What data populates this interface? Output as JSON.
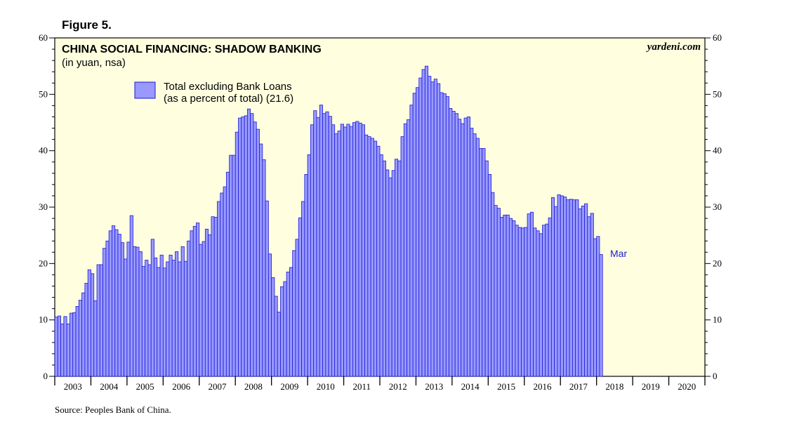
{
  "figure_label": "Figure 5.",
  "source": "Source: Peoples Bank of China.",
  "brand": "yardeni.com",
  "colors": {
    "plot_bg": "#ffffe0",
    "bar_fill": "#9999ff",
    "bar_stroke": "#1a1ad6",
    "annotation": "#1a1ad6"
  },
  "chart_data": {
    "type": "bar",
    "title": "CHINA SOCIAL FINANCING: SHADOW BANKING",
    "subtitle": "(in yuan, nsa)",
    "legend": {
      "line1": "Total excluding Bank Loans",
      "line2": "(as a percent of total) (21.6)",
      "placement": "top-left"
    },
    "annotation": "Mar",
    "x_start": "2003-01",
    "x_range": [
      "2003-01",
      "2020-12"
    ],
    "ylim": [
      0,
      60
    ],
    "yticks": [
      0,
      10,
      20,
      30,
      40,
      50,
      60
    ],
    "year_labels": [
      "2003",
      "2004",
      "2005",
      "2006",
      "2007",
      "2008",
      "2009",
      "2010",
      "2011",
      "2012",
      "2013",
      "2014",
      "2015",
      "2016",
      "2017",
      "2018",
      "2019",
      "2020"
    ],
    "grid": false,
    "values": [
      10.5,
      10.7,
      9.3,
      10.6,
      9.3,
      11.2,
      11.3,
      12.4,
      13.5,
      14.8,
      16.5,
      18.9,
      18.2,
      13.4,
      19.8,
      19.8,
      22.7,
      24.0,
      25.8,
      26.7,
      26.0,
      25.2,
      23.7,
      20.8,
      23.8,
      28.5,
      23.0,
      22.9,
      22.1,
      19.5,
      20.6,
      19.8,
      24.3,
      21.0,
      19.3,
      21.5,
      19.2,
      20.3,
      21.5,
      20.6,
      22.1,
      20.3,
      23.0,
      20.4,
      24.0,
      25.8,
      26.6,
      27.2,
      23.4,
      23.9,
      26.1,
      25.1,
      28.3,
      28.2,
      31.0,
      32.5,
      33.6,
      36.2,
      39.2,
      39.2,
      43.3,
      45.8,
      46.0,
      46.2,
      47.4,
      46.6,
      45.1,
      43.8,
      41.2,
      38.4,
      31.1,
      21.7,
      17.5,
      14.2,
      11.4,
      15.9,
      16.8,
      18.5,
      19.3,
      22.3,
      24.3,
      28.1,
      31.0,
      35.8,
      39.3,
      44.6,
      47.1,
      45.9,
      48.1,
      46.6,
      46.9,
      46.1,
      44.6,
      43.0,
      43.5,
      44.7,
      44.2,
      44.7,
      44.3,
      45.0,
      45.2,
      44.9,
      44.6,
      42.8,
      42.5,
      42.2,
      41.7,
      40.8,
      39.3,
      38.2,
      36.6,
      35.2,
      36.5,
      38.5,
      38.2,
      42.5,
      44.8,
      45.5,
      48.1,
      50.2,
      51.2,
      52.9,
      54.4,
      55.0,
      53.2,
      52.2,
      52.7,
      51.9,
      50.3,
      50.1,
      49.6,
      47.5,
      47.0,
      46.6,
      45.6,
      44.8,
      45.8,
      46.0,
      44.0,
      43.0,
      42.2,
      40.4,
      40.4,
      38.2,
      35.8,
      32.6,
      30.3,
      29.8,
      28.2,
      28.6,
      28.6,
      28.0,
      27.6,
      26.8,
      26.4,
      26.3,
      26.4,
      28.8,
      29.1,
      26.3,
      25.8,
      25.3,
      26.8,
      27.0,
      28.1,
      31.7,
      30.1,
      32.2,
      32.0,
      31.8,
      31.3,
      31.4,
      31.3,
      31.3,
      29.7,
      30.2,
      30.6,
      28.3,
      28.9,
      24.4,
      24.8,
      21.6
    ]
  }
}
